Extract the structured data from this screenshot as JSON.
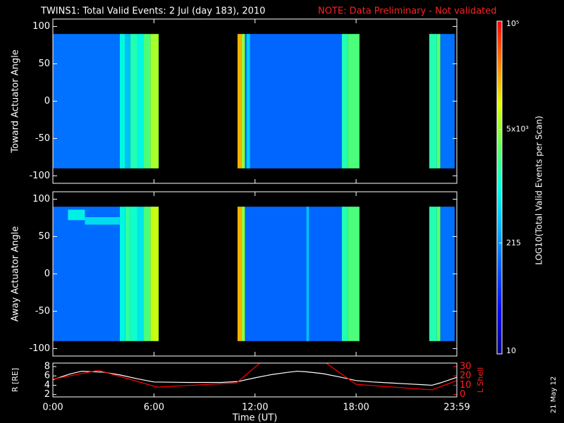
{
  "title": "TWINS1: Total Valid Events:  2 Jul (day 183), 2010",
  "note": "NOTE: Data Preliminary - Not validated",
  "footer_date": "21 May 12",
  "colorbar": {
    "label": "LOG10(Total Valid Events per Scan)",
    "log": true,
    "clim": [
      10,
      100000
    ],
    "ticks": [
      {
        "value": 10,
        "label": "10"
      },
      {
        "value": 215,
        "label": "215"
      },
      {
        "value": 5000,
        "label": "5x10³"
      },
      {
        "value": 100000,
        "label": "10⁵"
      }
    ],
    "colormap": [
      "#000080",
      "#0000ff",
      "#0050ff",
      "#00b0ff",
      "#00ffe0",
      "#60ff60",
      "#e0ff00",
      "#ff8000",
      "#ff0000"
    ]
  },
  "chart_data": [
    {
      "type": "spectrogram",
      "ylabel": "Toward Actuator Angle",
      "xlim": [
        0,
        23.98
      ],
      "ylim": [
        -110,
        110
      ],
      "yticks": [
        -100,
        -50,
        0,
        50,
        100
      ],
      "bands": [
        {
          "x": [
            0,
            3.97
          ],
          "y": [
            -90,
            90
          ],
          "value": 150
        },
        {
          "x": [
            3.97,
            4.3
          ],
          "y": [
            -90,
            90
          ],
          "value": 900
        },
        {
          "x": [
            4.3,
            4.6
          ],
          "y": [
            -90,
            90
          ],
          "value": 400
        },
        {
          "x": [
            4.6,
            5.0
          ],
          "y": [
            -90,
            90
          ],
          "value": 1500
        },
        {
          "x": [
            5.0,
            5.4
          ],
          "y": [
            -90,
            90
          ],
          "value": 900
        },
        {
          "x": [
            5.4,
            5.8
          ],
          "y": [
            -90,
            90
          ],
          "value": 2500
        },
        {
          "x": [
            5.8,
            6.28
          ],
          "y": [
            -90,
            90
          ],
          "value": 6000
        },
        {
          "x": [
            10.96,
            11.2
          ],
          "y": [
            -90,
            90
          ],
          "value": 20000
        },
        {
          "x": [
            11.2,
            11.4
          ],
          "y": [
            -90,
            90
          ],
          "value": 5000
        },
        {
          "x": [
            11.4,
            17.15
          ],
          "y": [
            -90,
            90
          ],
          "value": 130
        },
        {
          "x": [
            11.5,
            11.7
          ],
          "y": [
            -90,
            90
          ],
          "value": 500
        },
        {
          "x": [
            17.15,
            17.5
          ],
          "y": [
            -90,
            90
          ],
          "value": 1500
        },
        {
          "x": [
            17.5,
            18.2
          ],
          "y": [
            -90,
            90
          ],
          "value": 2500
        },
        {
          "x": [
            22.34,
            22.8
          ],
          "y": [
            -90,
            90
          ],
          "value": 1500
        },
        {
          "x": [
            22.8,
            23.0
          ],
          "y": [
            -90,
            90
          ],
          "value": 3000
        },
        {
          "x": [
            23.0,
            23.85
          ],
          "y": [
            -90,
            90
          ],
          "value": 150
        }
      ]
    },
    {
      "type": "spectrogram",
      "ylabel": "Away Actuator Angle",
      "xlim": [
        0,
        23.98
      ],
      "ylim": [
        -110,
        110
      ],
      "yticks": [
        -100,
        -50,
        0,
        50,
        100
      ],
      "bands": [
        {
          "x": [
            0,
            3.97
          ],
          "y": [
            -90,
            90
          ],
          "value": 140
        },
        {
          "x": [
            0.9,
            1.9
          ],
          "y": [
            72,
            86
          ],
          "value": 800
        },
        {
          "x": [
            1.9,
            3.97
          ],
          "y": [
            66,
            76
          ],
          "value": 600
        },
        {
          "x": [
            3.97,
            4.3
          ],
          "y": [
            -90,
            90
          ],
          "value": 900
        },
        {
          "x": [
            4.3,
            4.6
          ],
          "y": [
            -90,
            90
          ],
          "value": 1800
        },
        {
          "x": [
            4.6,
            5.0
          ],
          "y": [
            -90,
            90
          ],
          "value": 1200
        },
        {
          "x": [
            5.0,
            5.4
          ],
          "y": [
            -90,
            90
          ],
          "value": 700
        },
        {
          "x": [
            5.4,
            5.8
          ],
          "y": [
            -90,
            90
          ],
          "value": 2500
        },
        {
          "x": [
            5.8,
            6.28
          ],
          "y": [
            -90,
            90
          ],
          "value": 8000
        },
        {
          "x": [
            10.96,
            11.2
          ],
          "y": [
            -90,
            90
          ],
          "value": 20000
        },
        {
          "x": [
            11.2,
            11.4
          ],
          "y": [
            -90,
            90
          ],
          "value": 5000
        },
        {
          "x": [
            11.4,
            17.15
          ],
          "y": [
            -90,
            90
          ],
          "value": 130
        },
        {
          "x": [
            15.05,
            15.2
          ],
          "y": [
            -90,
            90
          ],
          "value": 400
        },
        {
          "x": [
            17.15,
            17.5
          ],
          "y": [
            -90,
            90
          ],
          "value": 1500
        },
        {
          "x": [
            17.5,
            18.2
          ],
          "y": [
            -90,
            90
          ],
          "value": 2500
        },
        {
          "x": [
            22.34,
            22.8
          ],
          "y": [
            -90,
            90
          ],
          "value": 1500
        },
        {
          "x": [
            22.8,
            23.0
          ],
          "y": [
            -90,
            90
          ],
          "value": 3000
        },
        {
          "x": [
            23.0,
            23.85
          ],
          "y": [
            -90,
            90
          ],
          "value": 150
        }
      ]
    },
    {
      "type": "line",
      "xlabel": "Time (UT)",
      "ylabel": "R [RE]",
      "y2label": "L Shell",
      "xlim": [
        0,
        23.98
      ],
      "ylim": [
        1.5,
        8.75
      ],
      "yticks": [
        2,
        4,
        6,
        8
      ],
      "y2lim": [
        -2.5,
        33.75
      ],
      "y2ticks": [
        0,
        10,
        20,
        30
      ],
      "xticks": [
        {
          "value": 0,
          "label": "0:00"
        },
        {
          "value": 6,
          "label": "6:00"
        },
        {
          "value": 12,
          "label": "12:00"
        },
        {
          "value": 18,
          "label": "18:00"
        },
        {
          "value": 23.98,
          "label": "23:59"
        }
      ],
      "series": [
        {
          "name": "R",
          "color": "#ffffff",
          "x": [
            0,
            1,
            1.7,
            3,
            4,
            5,
            6,
            8,
            10,
            11,
            12,
            13,
            14,
            14.5,
            15,
            16,
            17,
            18,
            19,
            20,
            21,
            22,
            22.5,
            23,
            23.98
          ],
          "values": [
            5.2,
            6.4,
            7,
            6.8,
            6.2,
            5.4,
            4.7,
            4.6,
            4.6,
            4.8,
            5.6,
            6.3,
            6.8,
            7,
            6.9,
            6.5,
            5.8,
            5,
            4.7,
            4.5,
            4.3,
            4.1,
            4,
            4.5,
            5.7
          ]
        },
        {
          "name": "L Shell",
          "color": "#ff0000",
          "axis": "y2",
          "x": [
            0,
            2.7,
            6.2,
            10.9,
            12.3,
            14,
            16.2,
            18,
            22.5,
            23.98
          ],
          "values": [
            16.5,
            26,
            8,
            12.5,
            34,
            null,
            34,
            11,
            5,
            15
          ]
        }
      ]
    }
  ]
}
